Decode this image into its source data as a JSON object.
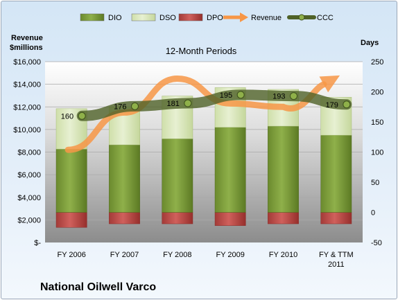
{
  "company": "National Oilwell Varco",
  "chart_data": {
    "type": "bar",
    "title": "12-Month Periods",
    "left_axis": {
      "title_line1": "Revenue",
      "title_line2": "$millions",
      "ylim": [
        0,
        16000
      ],
      "ticks": [
        0,
        2000,
        4000,
        6000,
        8000,
        10000,
        12000,
        14000,
        16000
      ],
      "tick_labels": [
        "$-",
        "$2,000",
        "$4,000",
        "$6,000",
        "$8,000",
        "$10,000",
        "$12,000",
        "$14,000",
        "$16,000"
      ]
    },
    "right_axis": {
      "title": "Days",
      "ylim": [
        -50,
        250
      ],
      "ticks": [
        -50,
        0,
        50,
        100,
        150,
        200,
        250
      ],
      "tick_labels": [
        "-50",
        "0",
        "50",
        "100",
        "150",
        "200",
        "250"
      ]
    },
    "categories": [
      "FY 2006",
      "FY 2007",
      "FY 2008",
      "FY 2009",
      "FY 2010",
      "FY & TTM 2011"
    ],
    "category_lines": [
      [
        "FY 2006"
      ],
      [
        "FY 2007"
      ],
      [
        "FY 2008"
      ],
      [
        "FY 2009"
      ],
      [
        "FY 2010"
      ],
      [
        "FY & TTM",
        "2011"
      ]
    ],
    "legend": {
      "position": "top",
      "entries": [
        {
          "name": "DIO",
          "color": "#77933c",
          "kind": "bar"
        },
        {
          "name": "DSO",
          "color": "#d7e4bd",
          "kind": "bar"
        },
        {
          "name": "DPO",
          "color": "#c0504d",
          "kind": "bar"
        },
        {
          "name": "Revenue",
          "color": "#f79646",
          "kind": "arrow"
        },
        {
          "name": "CCC",
          "color": "#4f6228",
          "kind": "line"
        }
      ]
    },
    "series": [
      {
        "name": "DIO",
        "axis": "right",
        "values": [
          105,
          112,
          122,
          141,
          143,
          128
        ]
      },
      {
        "name": "DSO",
        "axis": "right",
        "values": [
          67,
          63,
          71,
          66,
          61,
          63
        ]
      },
      {
        "name": "DPO",
        "axis": "right",
        "values": [
          -25,
          -19,
          -19,
          -22,
          -19,
          -19
        ]
      },
      {
        "name": "Revenue",
        "axis": "left",
        "values": [
          8200,
          11500,
          14500,
          12300,
          12000,
          14600
        ]
      },
      {
        "name": "CCC",
        "axis": "right",
        "values": [
          160,
          176,
          181,
          195,
          193,
          179
        ],
        "data_labels": [
          "160",
          "176",
          "181",
          "195",
          "193",
          "179"
        ]
      }
    ],
    "colors": {
      "dio": "#77933c",
      "dso": "#d7e4bd",
      "dpo": "#c0504d",
      "revenue": "#f79646",
      "ccc": "#4f6228"
    }
  }
}
